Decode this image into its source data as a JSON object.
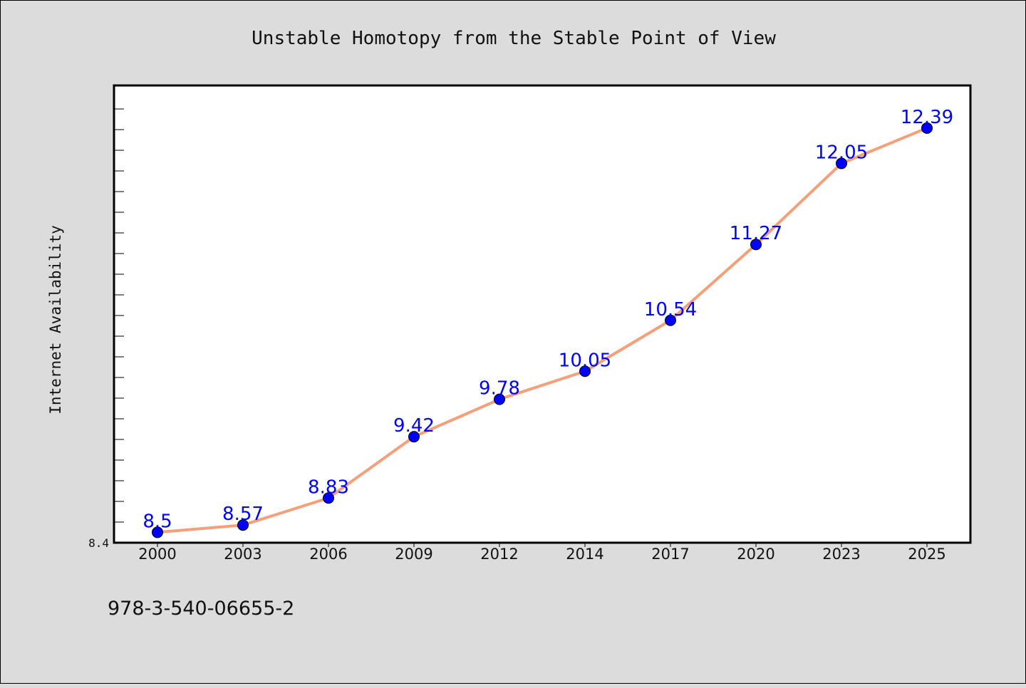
{
  "chart_data": {
    "type": "line",
    "title": "Unstable Homotopy from the Stable Point of View",
    "xlabel": "",
    "ylabel": "Internet Availability",
    "categories": [
      "2000",
      "2003",
      "2006",
      "2009",
      "2012",
      "2014",
      "2017",
      "2020",
      "2023",
      "2025"
    ],
    "values": [
      8.5,
      8.57,
      8.83,
      9.42,
      9.78,
      10.05,
      10.54,
      11.27,
      12.05,
      12.39
    ],
    "data_labels": [
      "8.5",
      "8.57",
      "8.83",
      "9.42",
      "9.78",
      "10.05",
      "10.54",
      "11.27",
      "12.05",
      "12.39"
    ],
    "y_tick_labels": [
      "8.4"
    ],
    "ylim": [
      8.4,
      12.8
    ],
    "grid": false,
    "line_color": "#f4a07a",
    "marker_color": "#0000ff",
    "label_color": "#0000ff"
  },
  "footer": {
    "isbn": "978-3-540-06655-2"
  }
}
